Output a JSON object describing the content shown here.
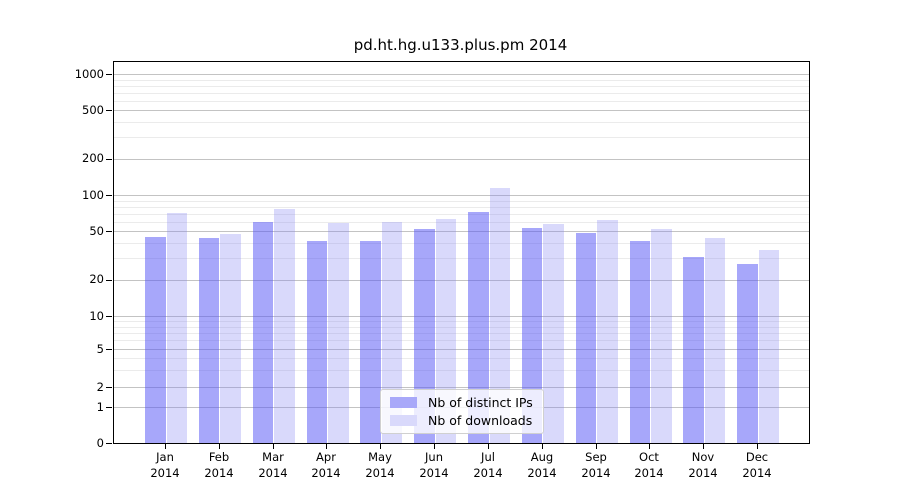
{
  "header": {
    "title": "pd.ht.hg.u133.plus.pm 2014"
  },
  "chart_data": {
    "type": "bar",
    "title": "pd.ht.hg.u133.plus.pm 2014",
    "categories": [
      "Jan",
      "Feb",
      "Mar",
      "Apr",
      "May",
      "Jun",
      "Jul",
      "Aug",
      "Sep",
      "Oct",
      "Nov",
      "Dec"
    ],
    "year_label": "2014",
    "series": [
      {
        "name": "Nb of distinct IPs",
        "values": [
          45,
          44,
          60,
          42,
          42,
          52,
          73,
          53,
          49,
          42,
          31,
          27
        ],
        "bar_color": "rgba(87,87,246,0.52)",
        "swatch_hex": "#a8a8f9"
      },
      {
        "name": "Nb of downloads",
        "values": [
          71,
          48,
          76,
          59,
          60,
          64,
          114,
          58,
          62,
          52,
          44,
          35
        ],
        "bar_color": "rgba(128,128,242,0.30)",
        "swatch_hex": "#d9d9fb"
      }
    ],
    "y_ticks": [
      0,
      1,
      2,
      5,
      10,
      20,
      50,
      100,
      200,
      500,
      1000
    ],
    "y_minor_gridlines": [
      3,
      4,
      6,
      7,
      8,
      9,
      30,
      40,
      60,
      70,
      80,
      90,
      300,
      400,
      600,
      700,
      800,
      900
    ],
    "yscale": "symlog",
    "ylim": [
      0,
      1280
    ],
    "grid": true,
    "legend_position": "lower center"
  }
}
